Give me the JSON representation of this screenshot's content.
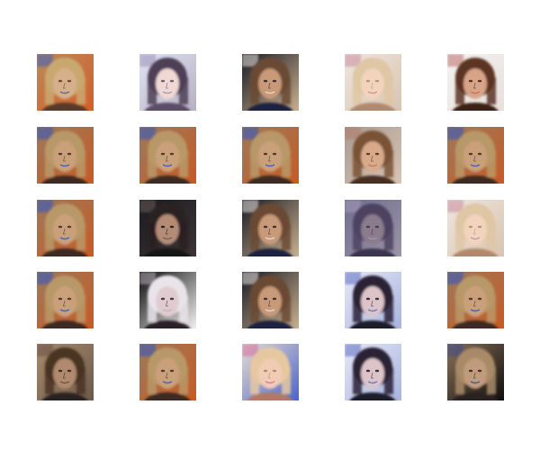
{
  "figure": {
    "rows": 5,
    "cols": 5,
    "background": "#ffffff",
    "samples": [
      [
        "t1",
        "t2",
        "t3",
        "t4",
        "t5"
      ],
      [
        "t6",
        "t6",
        "t6",
        "t7",
        "t6"
      ],
      [
        "t6",
        "t8",
        "t3",
        "t9",
        "t4"
      ],
      [
        "t6",
        "t10",
        "t3",
        "t11",
        "t6"
      ],
      [
        "t12",
        "t6",
        "t13",
        "t11",
        "t14"
      ]
    ],
    "palettes": {
      "t1": {
        "bg": "#b88a5c",
        "bg2": "#d45e28",
        "hair": "#c9a870",
        "skin": "#d6b08a",
        "dark": "#5a3b2a",
        "accent": "#3a5ec0"
      },
      "t2": {
        "bg": "#dfe3f2",
        "bg2": "#b8b0c4",
        "hair": "#4e3f56",
        "skin": "#f0d8d4",
        "dark": "#5c4d66",
        "accent": "#9c8fb6"
      },
      "t3": {
        "bg": "#1a1a24",
        "bg2": "#c8b090",
        "hair": "#6a4a34",
        "skin": "#c89a78",
        "dark": "#1e2040",
        "accent": "#e8e4e0"
      },
      "t4": {
        "bg": "#efe6de",
        "bg2": "#d8c4b0",
        "hair": "#dfc6a4",
        "skin": "#f2d4bc",
        "dark": "#b08a6e",
        "accent": "#c88aa0"
      },
      "t5": {
        "bg": "#f4f2f2",
        "bg2": "#e8e0dc",
        "hair": "#5c3424",
        "skin": "#d8a488",
        "dark": "#3a2018",
        "accent": "#c06a66"
      },
      "t6": {
        "bg": "#9c7a5a",
        "bg2": "#c85a24",
        "hair": "#b89868",
        "skin": "#caa07a",
        "dark": "#3c2a24",
        "accent": "#2e54c8"
      },
      "t7": {
        "bg": "#a89a92",
        "bg2": "#d8c4b4",
        "hair": "#7a5236",
        "skin": "#d8aa8a",
        "dark": "#4a2e22",
        "accent": "#b47a66"
      },
      "t8": {
        "bg": "#1c1c20",
        "bg2": "#3c3436",
        "hair": "#2a2022",
        "skin": "#b48c76",
        "dark": "#121214",
        "accent": "#6a5a58"
      },
      "t9": {
        "bg": "#6e6e8e",
        "bg2": "#9c94a8",
        "hair": "#4e4260",
        "skin": "#8a7c8c",
        "dark": "#3a3450",
        "accent": "#a89cb8"
      },
      "t10": {
        "bg": "#0a0a0a",
        "bg2": "#f2f0f0",
        "hair": "#e8e4ea",
        "skin": "#e0ccd0",
        "dark": "#2a2228",
        "accent": "#bcb0c0"
      },
      "t11": {
        "bg": "#e6e8f6",
        "bg2": "#a8b4e0",
        "hair": "#2a2236",
        "skin": "#dcc4c8",
        "dark": "#1e1a2c",
        "accent": "#5a6ac4"
      },
      "t12": {
        "bg": "#a88a6c",
        "bg2": "#6a5a4a",
        "hair": "#4a3424",
        "skin": "#b08a6e",
        "dark": "#2c2020",
        "accent": "#6a4e44"
      },
      "t13": {
        "bg": "#e8dcd4",
        "bg2": "#4a64c8",
        "hair": "#e6c8a0",
        "skin": "#f0ccb4",
        "dark": "#b07a68",
        "accent": "#d46c9c"
      },
      "t14": {
        "bg": "#8c7056",
        "bg2": "#0e0e0e",
        "hair": "#a88a68",
        "skin": "#c09c7c",
        "dark": "#2c2220",
        "accent": "#3a4c90"
      }
    }
  }
}
